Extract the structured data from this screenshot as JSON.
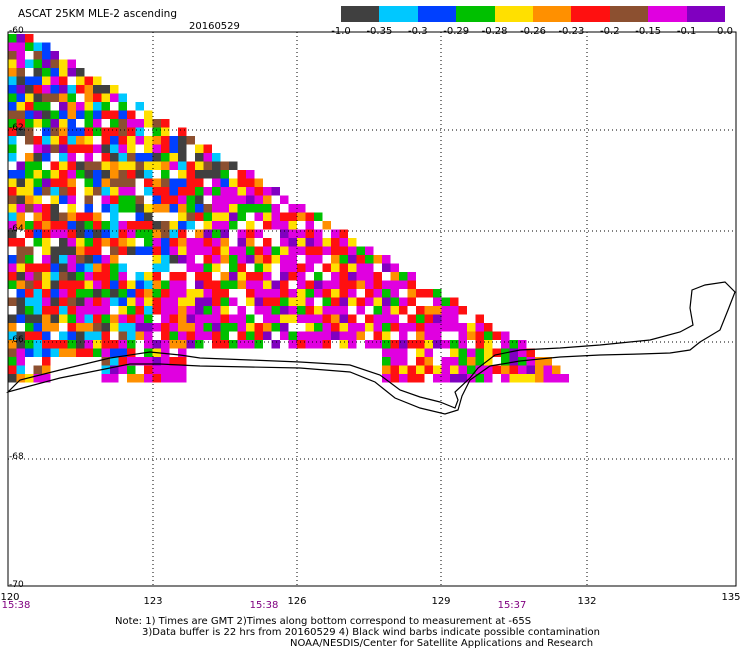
{
  "header": {
    "title": "ASCAT 25KM MLE-2 ascending",
    "date": "20160529"
  },
  "colorbar": {
    "colors": [
      "#404040",
      "#00c8ff",
      "#0040ff",
      "#00c000",
      "#ffe000",
      "#ff9000",
      "#ff1010",
      "#8c5030",
      "#e000e0",
      "#8000c0"
    ],
    "labels": [
      "-1.0",
      "-0.35",
      "-0.3",
      "-0.29",
      "-0.28",
      "-0.26",
      "-0.23",
      "-0.2",
      "-0.15",
      "-0.1",
      "0.0"
    ]
  },
  "axes": {
    "lat_labels": [
      "-60",
      "-62",
      "-64",
      "-66",
      "-68",
      "-70"
    ],
    "lon_labels": [
      "120",
      "123",
      "126",
      "129",
      "132",
      "135"
    ],
    "time_labels": [
      "15:38",
      "15:38",
      "15:37"
    ]
  },
  "notes": {
    "line1": "Note: 1) Times are GMT 2)Times along bottom correspond to measurement at -65S",
    "line2": "3)Data buffer is 22 hrs from 20160529 4) Black wind barbs indicate possible contamination",
    "line3": "NOAA/NESDIS/Center for Satellite Applications and Research"
  }
}
